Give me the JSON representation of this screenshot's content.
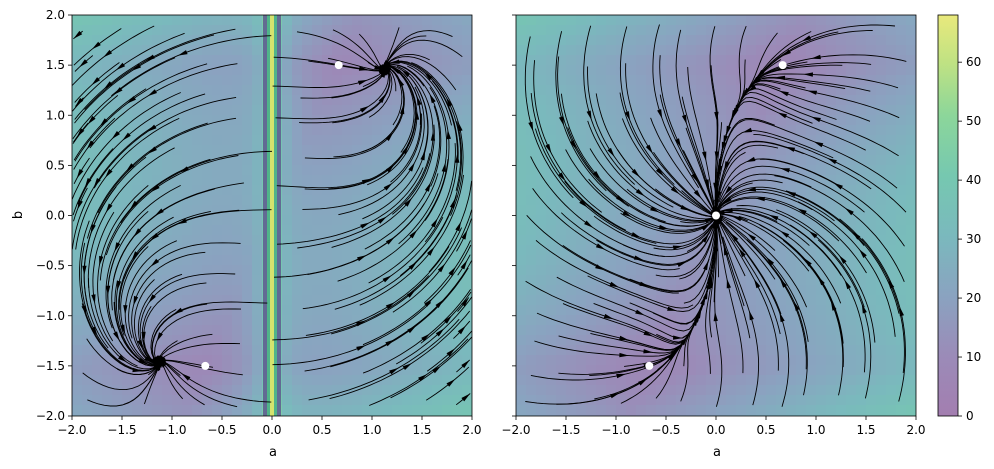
{
  "chart_data": [
    {
      "type": "streamplot",
      "panel": "left",
      "xlabel": "a",
      "ylabel": "b",
      "xlim": [
        -2.0,
        2.0
      ],
      "ylim": [
        -2.0,
        2.0
      ],
      "xticks": [
        "−2.0",
        "−1.5",
        "−1.0",
        "−0.5",
        "0.0",
        "0.5",
        "1.0",
        "1.5",
        "2.0"
      ],
      "yticks": [
        "−2.0",
        "−1.5",
        "−1.0",
        "−0.5",
        "0.0",
        "0.5",
        "1.0",
        "1.5",
        "2.0"
      ],
      "background": "filled contour of a scalar field, viridis colormap, semi-transparent",
      "singular_line_a": 0.0,
      "markers": [
        {
          "a": 0.667,
          "b": 1.5
        },
        {
          "a": -0.667,
          "b": -1.5
        }
      ],
      "marker_color": "#ffffff",
      "streamline_color": "#000000"
    },
    {
      "type": "streamplot",
      "panel": "right",
      "xlabel": "a",
      "ylabel": "",
      "xlim": [
        -2.0,
        2.0
      ],
      "ylim": [
        -2.0,
        2.0
      ],
      "xticks": [
        "−2.0",
        "−1.5",
        "−1.0",
        "−0.5",
        "0.0",
        "0.5",
        "1.0",
        "1.5",
        "2.0"
      ],
      "background": "filled contour of a scalar field, viridis colormap, semi-transparent",
      "markers": [
        {
          "a": 0.667,
          "b": 1.5
        },
        {
          "a": 0.0,
          "b": 0.0
        },
        {
          "a": -0.667,
          "b": -1.5
        }
      ],
      "marker_color": "#ffffff",
      "streamline_color": "#000000"
    }
  ],
  "colorbar": {
    "range": [
      0,
      68
    ],
    "ticks": [
      0,
      10,
      20,
      30,
      40,
      50,
      60
    ],
    "colormap": "viridis"
  }
}
